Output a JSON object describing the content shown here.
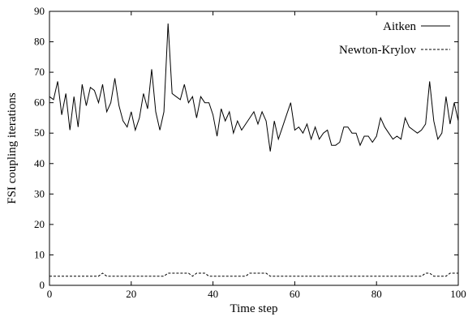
{
  "chart_data": {
    "type": "line",
    "title": "",
    "xlabel": "Time step",
    "ylabel": "FSI coupling iterations",
    "xlim": [
      0,
      100
    ],
    "ylim": [
      0,
      90
    ],
    "xticks": [
      0,
      20,
      40,
      60,
      80,
      100
    ],
    "yticks": [
      0,
      10,
      20,
      30,
      40,
      50,
      60,
      70,
      80,
      90
    ],
    "grid": false,
    "legend_position": "top-right",
    "series": [
      {
        "name": "Aitken",
        "line_style": "solid",
        "color": "#000000",
        "x": [
          0,
          1,
          2,
          3,
          4,
          5,
          6,
          7,
          8,
          9,
          10,
          11,
          12,
          13,
          14,
          15,
          16,
          17,
          18,
          19,
          20,
          21,
          22,
          23,
          24,
          25,
          26,
          27,
          28,
          29,
          30,
          31,
          32,
          33,
          34,
          35,
          36,
          37,
          38,
          39,
          40,
          41,
          42,
          43,
          44,
          45,
          46,
          47,
          48,
          49,
          50,
          51,
          52,
          53,
          54,
          55,
          56,
          57,
          58,
          59,
          60,
          61,
          62,
          63,
          64,
          65,
          66,
          67,
          68,
          69,
          70,
          71,
          72,
          73,
          74,
          75,
          76,
          77,
          78,
          79,
          80,
          81,
          82,
          83,
          84,
          85,
          86,
          87,
          88,
          89,
          90,
          91,
          92,
          93,
          94,
          95,
          96,
          97,
          98,
          99,
          100
        ],
        "y": [
          62,
          61,
          67,
          56,
          63,
          51,
          62,
          52,
          66,
          59,
          65,
          64,
          60,
          66,
          57,
          60,
          68,
          59,
          54,
          52,
          57,
          51,
          55,
          63,
          58,
          71,
          57,
          51,
          57,
          86,
          63,
          62,
          61,
          66,
          60,
          62,
          55,
          62,
          60,
          60,
          56,
          49,
          58,
          54,
          57,
          50,
          54,
          51,
          53,
          55,
          57,
          53,
          57,
          54,
          44,
          54,
          48,
          52,
          56,
          60,
          51,
          52,
          50,
          53,
          48,
          52,
          48,
          50,
          51,
          46,
          46,
          47,
          52,
          52,
          50,
          50,
          46,
          49,
          49,
          47,
          49,
          55,
          52,
          50,
          48,
          49,
          48,
          55,
          52,
          51,
          50,
          51,
          53,
          67,
          54,
          48,
          50,
          62,
          53,
          60,
          54
        ]
      },
      {
        "name": "Newton-Krylov",
        "line_style": "dashed",
        "color": "#000000",
        "x": [
          0,
          1,
          2,
          3,
          4,
          5,
          6,
          7,
          8,
          9,
          10,
          11,
          12,
          13,
          14,
          15,
          16,
          17,
          18,
          19,
          20,
          21,
          22,
          23,
          24,
          25,
          26,
          27,
          28,
          29,
          30,
          31,
          32,
          33,
          34,
          35,
          36,
          37,
          38,
          39,
          40,
          41,
          42,
          43,
          44,
          45,
          46,
          47,
          48,
          49,
          50,
          51,
          52,
          53,
          54,
          55,
          56,
          57,
          58,
          59,
          60,
          61,
          62,
          63,
          64,
          65,
          66,
          67,
          68,
          69,
          70,
          71,
          72,
          73,
          74,
          75,
          76,
          77,
          78,
          79,
          80,
          81,
          82,
          83,
          84,
          85,
          86,
          87,
          88,
          89,
          90,
          91,
          92,
          93,
          94,
          95,
          96,
          97,
          98,
          99,
          100
        ],
        "y": [
          3,
          3,
          3,
          3,
          3,
          3,
          3,
          3,
          3,
          3,
          3,
          3,
          3,
          4,
          3,
          3,
          3,
          3,
          3,
          3,
          3,
          3,
          3,
          3,
          3,
          3,
          3,
          3,
          3,
          4,
          4,
          4,
          4,
          4,
          4,
          3,
          4,
          4,
          4,
          3,
          3,
          3,
          3,
          3,
          3,
          3,
          3,
          3,
          3,
          4,
          4,
          4,
          4,
          4,
          3,
          3,
          3,
          3,
          3,
          3,
          3,
          3,
          3,
          3,
          3,
          3,
          3,
          3,
          3,
          3,
          3,
          3,
          3,
          3,
          3,
          3,
          3,
          3,
          3,
          3,
          3,
          3,
          3,
          3,
          3,
          3,
          3,
          3,
          3,
          3,
          3,
          3,
          4,
          4,
          3,
          3,
          3,
          3,
          4,
          4,
          4
        ]
      }
    ]
  }
}
